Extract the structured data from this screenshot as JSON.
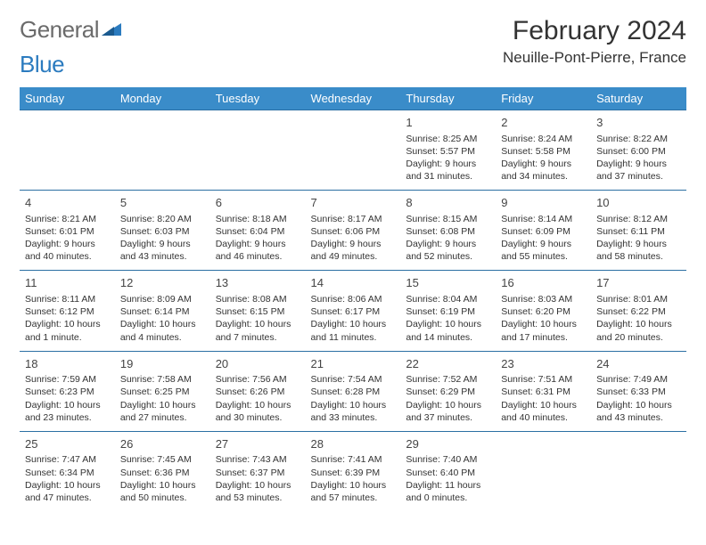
{
  "logo": {
    "word1": "General",
    "word2": "Blue"
  },
  "title": "February 2024",
  "location": "Neuille-Pont-Pierre, France",
  "colors": {
    "header_bg": "#3a8cc9",
    "header_text": "#ffffff",
    "row_border": "#2b6fa3",
    "logo_gray": "#6b6b6b",
    "logo_blue": "#2b7bbf",
    "text": "#333333",
    "background": "#ffffff"
  },
  "typography": {
    "title_fontsize": 30,
    "location_fontsize": 17,
    "logo_fontsize": 26,
    "dayheader_fontsize": 13,
    "daynum_fontsize": 13,
    "body_fontsize": 10.5
  },
  "day_headers": [
    "Sunday",
    "Monday",
    "Tuesday",
    "Wednesday",
    "Thursday",
    "Friday",
    "Saturday"
  ],
  "weeks": [
    [
      null,
      null,
      null,
      null,
      {
        "n": "1",
        "sr": "Sunrise: 8:25 AM",
        "ss": "Sunset: 5:57 PM",
        "d1": "Daylight: 9 hours",
        "d2": "and 31 minutes."
      },
      {
        "n": "2",
        "sr": "Sunrise: 8:24 AM",
        "ss": "Sunset: 5:58 PM",
        "d1": "Daylight: 9 hours",
        "d2": "and 34 minutes."
      },
      {
        "n": "3",
        "sr": "Sunrise: 8:22 AM",
        "ss": "Sunset: 6:00 PM",
        "d1": "Daylight: 9 hours",
        "d2": "and 37 minutes."
      }
    ],
    [
      {
        "n": "4",
        "sr": "Sunrise: 8:21 AM",
        "ss": "Sunset: 6:01 PM",
        "d1": "Daylight: 9 hours",
        "d2": "and 40 minutes."
      },
      {
        "n": "5",
        "sr": "Sunrise: 8:20 AM",
        "ss": "Sunset: 6:03 PM",
        "d1": "Daylight: 9 hours",
        "d2": "and 43 minutes."
      },
      {
        "n": "6",
        "sr": "Sunrise: 8:18 AM",
        "ss": "Sunset: 6:04 PM",
        "d1": "Daylight: 9 hours",
        "d2": "and 46 minutes."
      },
      {
        "n": "7",
        "sr": "Sunrise: 8:17 AM",
        "ss": "Sunset: 6:06 PM",
        "d1": "Daylight: 9 hours",
        "d2": "and 49 minutes."
      },
      {
        "n": "8",
        "sr": "Sunrise: 8:15 AM",
        "ss": "Sunset: 6:08 PM",
        "d1": "Daylight: 9 hours",
        "d2": "and 52 minutes."
      },
      {
        "n": "9",
        "sr": "Sunrise: 8:14 AM",
        "ss": "Sunset: 6:09 PM",
        "d1": "Daylight: 9 hours",
        "d2": "and 55 minutes."
      },
      {
        "n": "10",
        "sr": "Sunrise: 8:12 AM",
        "ss": "Sunset: 6:11 PM",
        "d1": "Daylight: 9 hours",
        "d2": "and 58 minutes."
      }
    ],
    [
      {
        "n": "11",
        "sr": "Sunrise: 8:11 AM",
        "ss": "Sunset: 6:12 PM",
        "d1": "Daylight: 10 hours",
        "d2": "and 1 minute."
      },
      {
        "n": "12",
        "sr": "Sunrise: 8:09 AM",
        "ss": "Sunset: 6:14 PM",
        "d1": "Daylight: 10 hours",
        "d2": "and 4 minutes."
      },
      {
        "n": "13",
        "sr": "Sunrise: 8:08 AM",
        "ss": "Sunset: 6:15 PM",
        "d1": "Daylight: 10 hours",
        "d2": "and 7 minutes."
      },
      {
        "n": "14",
        "sr": "Sunrise: 8:06 AM",
        "ss": "Sunset: 6:17 PM",
        "d1": "Daylight: 10 hours",
        "d2": "and 11 minutes."
      },
      {
        "n": "15",
        "sr": "Sunrise: 8:04 AM",
        "ss": "Sunset: 6:19 PM",
        "d1": "Daylight: 10 hours",
        "d2": "and 14 minutes."
      },
      {
        "n": "16",
        "sr": "Sunrise: 8:03 AM",
        "ss": "Sunset: 6:20 PM",
        "d1": "Daylight: 10 hours",
        "d2": "and 17 minutes."
      },
      {
        "n": "17",
        "sr": "Sunrise: 8:01 AM",
        "ss": "Sunset: 6:22 PM",
        "d1": "Daylight: 10 hours",
        "d2": "and 20 minutes."
      }
    ],
    [
      {
        "n": "18",
        "sr": "Sunrise: 7:59 AM",
        "ss": "Sunset: 6:23 PM",
        "d1": "Daylight: 10 hours",
        "d2": "and 23 minutes."
      },
      {
        "n": "19",
        "sr": "Sunrise: 7:58 AM",
        "ss": "Sunset: 6:25 PM",
        "d1": "Daylight: 10 hours",
        "d2": "and 27 minutes."
      },
      {
        "n": "20",
        "sr": "Sunrise: 7:56 AM",
        "ss": "Sunset: 6:26 PM",
        "d1": "Daylight: 10 hours",
        "d2": "and 30 minutes."
      },
      {
        "n": "21",
        "sr": "Sunrise: 7:54 AM",
        "ss": "Sunset: 6:28 PM",
        "d1": "Daylight: 10 hours",
        "d2": "and 33 minutes."
      },
      {
        "n": "22",
        "sr": "Sunrise: 7:52 AM",
        "ss": "Sunset: 6:29 PM",
        "d1": "Daylight: 10 hours",
        "d2": "and 37 minutes."
      },
      {
        "n": "23",
        "sr": "Sunrise: 7:51 AM",
        "ss": "Sunset: 6:31 PM",
        "d1": "Daylight: 10 hours",
        "d2": "and 40 minutes."
      },
      {
        "n": "24",
        "sr": "Sunrise: 7:49 AM",
        "ss": "Sunset: 6:33 PM",
        "d1": "Daylight: 10 hours",
        "d2": "and 43 minutes."
      }
    ],
    [
      {
        "n": "25",
        "sr": "Sunrise: 7:47 AM",
        "ss": "Sunset: 6:34 PM",
        "d1": "Daylight: 10 hours",
        "d2": "and 47 minutes."
      },
      {
        "n": "26",
        "sr": "Sunrise: 7:45 AM",
        "ss": "Sunset: 6:36 PM",
        "d1": "Daylight: 10 hours",
        "d2": "and 50 minutes."
      },
      {
        "n": "27",
        "sr": "Sunrise: 7:43 AM",
        "ss": "Sunset: 6:37 PM",
        "d1": "Daylight: 10 hours",
        "d2": "and 53 minutes."
      },
      {
        "n": "28",
        "sr": "Sunrise: 7:41 AM",
        "ss": "Sunset: 6:39 PM",
        "d1": "Daylight: 10 hours",
        "d2": "and 57 minutes."
      },
      {
        "n": "29",
        "sr": "Sunrise: 7:40 AM",
        "ss": "Sunset: 6:40 PM",
        "d1": "Daylight: 11 hours",
        "d2": "and 0 minutes."
      },
      null,
      null
    ]
  ]
}
